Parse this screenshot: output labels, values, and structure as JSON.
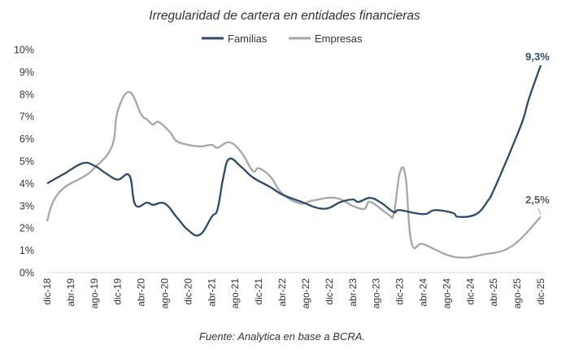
{
  "chart_data": {
    "type": "line",
    "title": "Irregularidad de cartera en entidades financieras",
    "source": "Fuente: Analytica en base a BCRA.",
    "legend_position": "top",
    "grid": false,
    "ylim": [
      0,
      10
    ],
    "y_ticks": [
      "0%",
      "1%",
      "2%",
      "3%",
      "4%",
      "5%",
      "6%",
      "7%",
      "8%",
      "9%",
      "10%"
    ],
    "x_range": [
      "2018-12",
      "2025-12"
    ],
    "x_ticks": [
      "dic-18",
      "abr-19",
      "ago-19",
      "dic-19",
      "abr-20",
      "ago-20",
      "dic-20",
      "abr-21",
      "ago-21",
      "dic-21",
      "abr-22",
      "ago-22",
      "dic-22",
      "abr-23",
      "ago-23",
      "dic-23",
      "abr-24",
      "ago-24",
      "dic-24",
      "abr-25",
      "ago-25",
      "dic-25"
    ],
    "series": [
      {
        "name": "Familias",
        "color": "#2d4a6b",
        "end_label": "9,3%",
        "points": [
          [
            "2018-12",
            4.0
          ],
          [
            "2019-03",
            4.45
          ],
          [
            "2019-06",
            4.9
          ],
          [
            "2019-08",
            4.8
          ],
          [
            "2019-10",
            4.45
          ],
          [
            "2019-12",
            4.17
          ],
          [
            "2020-02",
            4.35
          ],
          [
            "2020-03",
            3.04
          ],
          [
            "2020-05",
            3.14
          ],
          [
            "2020-06",
            3.04
          ],
          [
            "2020-08",
            3.1
          ],
          [
            "2020-10",
            2.5
          ],
          [
            "2020-12",
            1.9
          ],
          [
            "2021-02",
            1.7
          ],
          [
            "2021-04",
            2.5
          ],
          [
            "2021-05",
            2.85
          ],
          [
            "2021-06",
            4.3
          ],
          [
            "2021-07",
            5.1
          ],
          [
            "2021-09",
            4.75
          ],
          [
            "2021-11",
            4.27
          ],
          [
            "2022-02",
            3.83
          ],
          [
            "2022-04",
            3.5
          ],
          [
            "2022-07",
            3.2
          ],
          [
            "2022-11",
            2.86
          ],
          [
            "2023-02",
            3.17
          ],
          [
            "2023-04",
            3.28
          ],
          [
            "2023-05",
            3.17
          ],
          [
            "2023-07",
            3.35
          ],
          [
            "2023-09",
            3.1
          ],
          [
            "2023-11",
            2.71
          ],
          [
            "2023-12",
            2.8
          ],
          [
            "2024-04",
            2.62
          ],
          [
            "2024-06",
            2.8
          ],
          [
            "2024-09",
            2.68
          ],
          [
            "2024-10",
            2.5
          ],
          [
            "2025-01",
            2.62
          ],
          [
            "2025-03",
            3.22
          ],
          [
            "2025-04",
            3.7
          ],
          [
            "2025-07",
            5.54
          ],
          [
            "2025-09",
            6.87
          ],
          [
            "2025-10",
            7.8
          ],
          [
            "2025-12",
            9.3
          ]
        ]
      },
      {
        "name": "Empresas",
        "color": "#a6a6a6",
        "end_label": "2,5%",
        "points": [
          [
            "2018-12",
            2.3
          ],
          [
            "2019-01",
            3.17
          ],
          [
            "2019-03",
            3.83
          ],
          [
            "2019-06",
            4.27
          ],
          [
            "2019-08",
            4.68
          ],
          [
            "2019-11",
            5.65
          ],
          [
            "2019-12",
            7.24
          ],
          [
            "2020-02",
            8.1
          ],
          [
            "2020-04",
            7.1
          ],
          [
            "2020-05",
            6.87
          ],
          [
            "2020-06",
            6.64
          ],
          [
            "2020-07",
            6.75
          ],
          [
            "2020-09",
            6.27
          ],
          [
            "2020-10",
            5.9
          ],
          [
            "2020-12",
            5.73
          ],
          [
            "2021-02",
            5.66
          ],
          [
            "2021-04",
            5.73
          ],
          [
            "2021-05",
            5.6
          ],
          [
            "2021-07",
            5.84
          ],
          [
            "2021-09",
            5.41
          ],
          [
            "2021-11",
            4.56
          ],
          [
            "2021-12",
            4.68
          ],
          [
            "2022-02",
            4.3
          ],
          [
            "2022-04",
            3.54
          ],
          [
            "2022-07",
            3.1
          ],
          [
            "2022-09",
            3.22
          ],
          [
            "2023-01",
            3.35
          ],
          [
            "2023-04",
            2.99
          ],
          [
            "2023-06",
            2.86
          ],
          [
            "2023-07",
            3.17
          ],
          [
            "2023-10",
            2.62
          ],
          [
            "2023-11",
            2.65
          ],
          [
            "2023-12",
            4.45
          ],
          [
            "2024-01",
            4.3
          ],
          [
            "2024-02",
            1.35
          ],
          [
            "2024-04",
            1.28
          ],
          [
            "2024-08",
            0.8
          ],
          [
            "2024-11",
            0.67
          ],
          [
            "2025-02",
            0.8
          ],
          [
            "2025-07",
            1.17
          ],
          [
            "2025-12",
            2.5
          ]
        ]
      }
    ]
  }
}
